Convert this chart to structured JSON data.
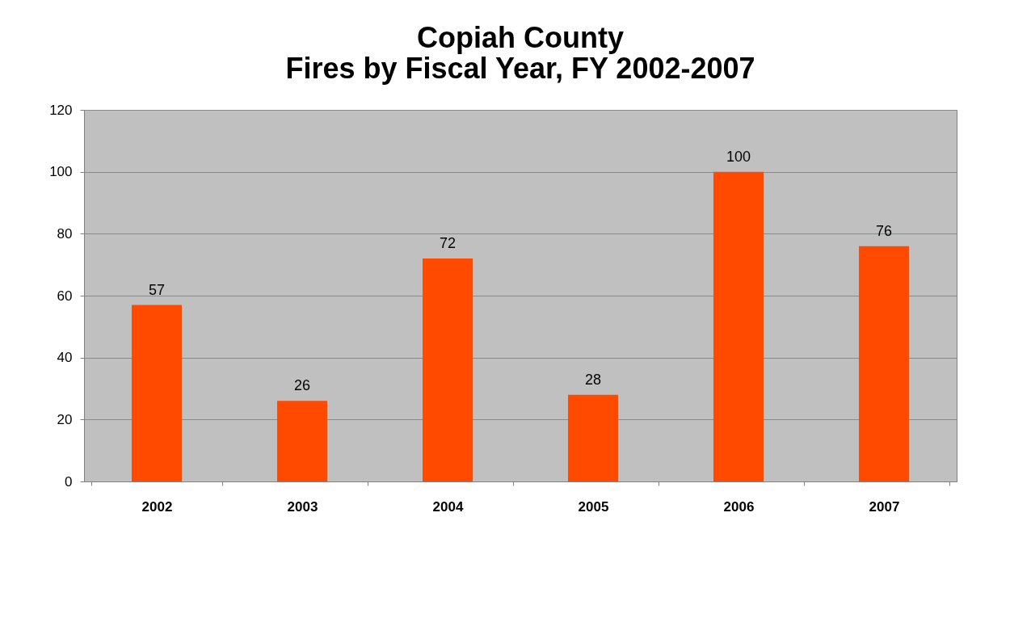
{
  "chart_data": {
    "type": "bar",
    "title": "Copiah County\nFires by Fiscal Year, FY 2002-2007",
    "categories": [
      "2002",
      "2003",
      "2004",
      "2005",
      "2006",
      "2007"
    ],
    "values": [
      57,
      26,
      72,
      28,
      100,
      76
    ],
    "color": "#ff4a00",
    "ylim": [
      0,
      120
    ],
    "yticks": [
      0,
      20,
      40,
      60,
      80,
      100,
      120
    ],
    "grid": "y",
    "data_labels": true
  }
}
